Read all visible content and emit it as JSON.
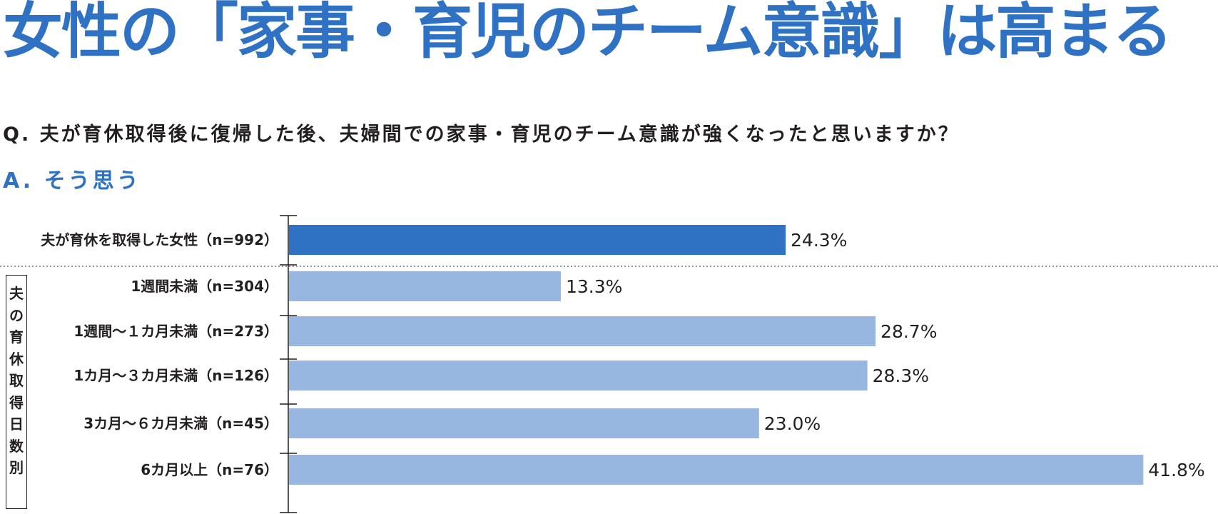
{
  "header": {
    "title": "女性の「家事・育児のチーム意識」は高まる",
    "question": "Q. 夫が育休取得後に復帰した後、夫婦間での家事・育児のチーム意識が強くなったと思いますか？",
    "answer": "A. そう思う"
  },
  "chart_data": {
    "type": "bar",
    "orientation": "horizontal",
    "categories": [
      "夫が育休を取得した女性（n=992）",
      "1週間未満（n=304）",
      "1週間〜１カ月未満（n=273）",
      "1カ月〜３カ月未満（n=126）",
      "3カ月〜６カ月未満（n=45）",
      "6カ月以上（n=76）"
    ],
    "values": [
      24.3,
      13.3,
      28.7,
      28.3,
      23.0,
      41.8
    ],
    "value_labels": [
      "24.3%",
      "13.3%",
      "28.7%",
      "28.3%",
      "23.0%",
      "41.8%"
    ],
    "highlight_index": 0,
    "group_label": "夫の育休取得日数別",
    "xlim": [
      0,
      42
    ],
    "colors": {
      "highlight": "#2f72c4",
      "default": "#97b6e0",
      "title": "#2f72c4",
      "text": "#231f20"
    },
    "grid": false
  }
}
